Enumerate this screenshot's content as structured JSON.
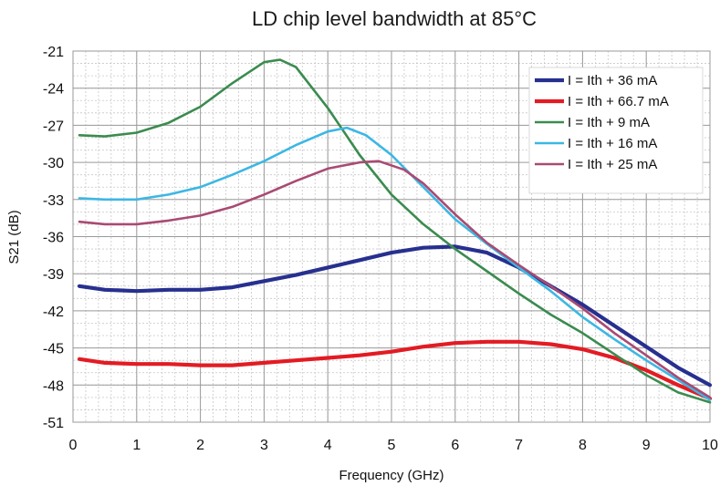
{
  "chart_data": {
    "type": "line",
    "title": "LD chip level bandwidth at 85°C",
    "xlabel": "Frequency (GHz)",
    "ylabel": "S21 (dB)",
    "xlim": [
      0,
      10
    ],
    "ylim": [
      -51,
      -21
    ],
    "xticks": [
      0,
      1,
      2,
      3,
      4,
      5,
      6,
      7,
      8,
      9,
      10
    ],
    "yticks": [
      -21,
      -24,
      -27,
      -30,
      -33,
      -36,
      -39,
      -42,
      -45,
      -48,
      -51
    ],
    "minor_x_step": 0.2,
    "minor_y_step": 1,
    "grid": true,
    "legend_position": "top-right",
    "series": [
      {
        "name": "I = Ith + 36 mA",
        "color": "#27308f",
        "x": [
          0.1,
          0.5,
          1,
          1.5,
          2,
          2.5,
          3,
          3.5,
          4,
          4.5,
          5,
          5.5,
          6,
          6.5,
          7,
          7.5,
          8,
          8.5,
          9,
          9.5,
          10
        ],
        "y": [
          -40.0,
          -40.3,
          -40.4,
          -40.3,
          -40.3,
          -40.1,
          -39.6,
          -39.1,
          -38.5,
          -37.9,
          -37.3,
          -36.9,
          -36.8,
          -37.3,
          -38.5,
          -40.0,
          -41.5,
          -43.2,
          -44.9,
          -46.6,
          -48.0
        ]
      },
      {
        "name": "I = Ith + 66.7 mA",
        "color": "#e31b23",
        "x": [
          0.1,
          0.5,
          1,
          1.5,
          2,
          2.5,
          3,
          3.5,
          4,
          4.5,
          5,
          5.5,
          6,
          6.5,
          7,
          7.5,
          8,
          8.5,
          9,
          9.5,
          10
        ],
        "y": [
          -45.9,
          -46.2,
          -46.3,
          -46.3,
          -46.4,
          -46.4,
          -46.2,
          -46.0,
          -45.8,
          -45.6,
          -45.3,
          -44.9,
          -44.6,
          -44.5,
          -44.5,
          -44.7,
          -45.1,
          -45.8,
          -46.8,
          -48.0,
          -49.1
        ]
      },
      {
        "name": "I = Ith + 9 mA",
        "color": "#3b8b4f",
        "x": [
          0.1,
          0.5,
          1,
          1.5,
          2,
          2.5,
          3,
          3.25,
          3.5,
          4,
          4.5,
          5,
          5.5,
          6,
          6.5,
          7,
          7.5,
          8,
          8.5,
          9,
          9.5,
          10
        ],
        "y": [
          -27.8,
          -27.9,
          -27.6,
          -26.8,
          -25.5,
          -23.6,
          -21.9,
          -21.7,
          -22.3,
          -25.6,
          -29.4,
          -32.6,
          -35.0,
          -37.0,
          -38.8,
          -40.6,
          -42.3,
          -43.8,
          -45.5,
          -47.2,
          -48.6,
          -49.4
        ]
      },
      {
        "name": "I = Ith + 16 mA",
        "color": "#3cb7e4",
        "x": [
          0.1,
          0.5,
          1,
          1.5,
          2,
          2.5,
          3,
          3.5,
          4,
          4.3,
          4.6,
          5,
          5.5,
          6,
          6.5,
          7,
          7.5,
          8,
          8.5,
          9,
          9.5,
          10
        ],
        "y": [
          -32.9,
          -33.0,
          -33.0,
          -32.6,
          -32.0,
          -31.0,
          -29.9,
          -28.6,
          -27.5,
          -27.2,
          -27.8,
          -29.4,
          -32.0,
          -34.6,
          -36.6,
          -38.5,
          -40.4,
          -42.5,
          -44.3,
          -46.0,
          -47.6,
          -49.2
        ]
      },
      {
        "name": "I = Ith + 25 mA",
        "color": "#a94a73",
        "x": [
          0.1,
          0.5,
          1,
          1.5,
          2,
          2.5,
          3,
          3.5,
          4,
          4.5,
          4.8,
          5.2,
          5.5,
          6,
          6.5,
          7,
          7.5,
          8,
          8.5,
          9,
          9.5,
          10
        ],
        "y": [
          -34.8,
          -35.0,
          -35.0,
          -34.7,
          -34.3,
          -33.6,
          -32.6,
          -31.5,
          -30.5,
          -30.0,
          -29.9,
          -30.6,
          -31.7,
          -34.2,
          -36.5,
          -38.3,
          -40.0,
          -41.8,
          -43.8,
          -45.6,
          -47.4,
          -49.0
        ]
      }
    ]
  }
}
